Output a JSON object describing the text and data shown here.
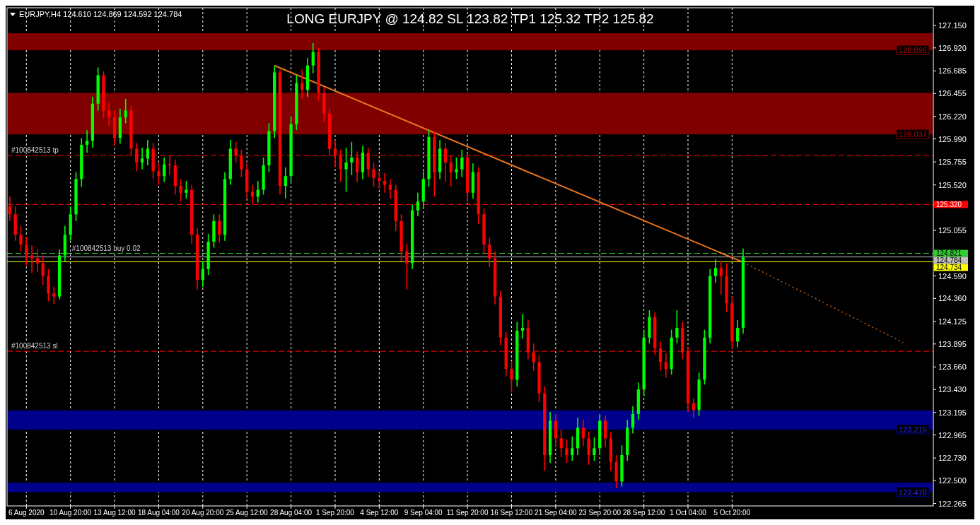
{
  "chart_data": {
    "type": "candlestick",
    "title": "LONG EURJPY @ 124.82 SL 123.82 TP1 125.32 TP2 125.82",
    "annotations": [
      "EURJPY,H4  124.610 124.869 124.592 124.784",
      {
        "text": "#100842513 tp",
        "y": 125.82
      },
      {
        "text": "#100842513 buy 0.02",
        "y": 124.821
      },
      {
        "text": "#100842513 sl",
        "y": 123.82
      }
    ],
    "categories": [
      null,
      null,
      null,
      "6 Aug 2020",
      null,
      null,
      null,
      null,
      null,
      null,
      null,
      "10 Aug 20:00",
      null,
      null,
      null,
      null,
      null,
      null,
      null,
      "13 Aug 12:00",
      null,
      null,
      null,
      null,
      null,
      null,
      null,
      "18 Aug 04:00",
      null,
      null,
      null,
      null,
      null,
      null,
      null,
      "20 Aug 20:00",
      null,
      null,
      null,
      null,
      null,
      null,
      null,
      "25 Aug 12:00",
      null,
      null,
      null,
      null,
      null,
      null,
      null,
      "28 Aug 04:00",
      null,
      null,
      null,
      null,
      null,
      null,
      null,
      "1 Sep 20:00",
      null,
      null,
      null,
      null,
      null,
      null,
      null,
      "4 Sep 12:00",
      null,
      null,
      null,
      null,
      null,
      null,
      null,
      "9 Sep 04:00",
      null,
      null,
      null,
      null,
      null,
      null,
      null,
      "11 Sep 20:00",
      null,
      null,
      null,
      null,
      null,
      null,
      null,
      "16 Sep 12:00",
      null,
      null,
      null,
      null,
      null,
      null,
      null,
      "21 Sep 04:00",
      null,
      null,
      null,
      null,
      null,
      null,
      null,
      "23 Sep 20:00",
      null,
      null,
      null,
      null,
      null,
      null,
      null,
      "28 Sep 12:00",
      null,
      null,
      null,
      null,
      null,
      null,
      null,
      "1 Oct 04:00",
      null,
      null,
      null,
      null,
      null,
      null,
      null,
      "5 Oct 20:00",
      null,
      null,
      null,
      null,
      null,
      null,
      null,
      null,
      null,
      null,
      null,
      null,
      null,
      null,
      null,
      null,
      null,
      null,
      null,
      null,
      null,
      null,
      null,
      null,
      null,
      null,
      null,
      null,
      null,
      null,
      null,
      null,
      null,
      null,
      null,
      null
    ],
    "ohlc": [
      [
        125.3,
        125.4,
        125.15,
        125.22
      ],
      [
        125.22,
        125.3,
        124.95,
        125.01
      ],
      [
        125.01,
        125.1,
        124.84,
        124.91
      ],
      [
        124.91,
        124.99,
        124.7,
        124.8
      ],
      [
        124.8,
        124.9,
        124.62,
        124.77
      ],
      [
        124.77,
        124.86,
        124.63,
        124.72
      ],
      [
        124.72,
        124.8,
        124.5,
        124.59
      ],
      [
        124.59,
        124.66,
        124.33,
        124.41
      ],
      [
        124.41,
        124.48,
        124.3,
        124.38
      ],
      [
        124.38,
        124.86,
        124.35,
        124.8
      ],
      [
        124.8,
        125.1,
        124.74,
        125.01
      ],
      [
        125.01,
        125.3,
        124.95,
        125.22
      ],
      [
        125.22,
        125.65,
        125.15,
        125.58
      ],
      [
        125.58,
        126.0,
        125.5,
        125.93
      ],
      [
        125.93,
        126.08,
        125.85,
        125.97
      ],
      [
        125.97,
        126.42,
        125.9,
        126.35
      ],
      [
        126.35,
        126.72,
        126.28,
        126.64
      ],
      [
        126.64,
        126.68,
        126.2,
        126.28
      ],
      [
        126.28,
        126.36,
        126.12,
        126.21
      ],
      [
        126.21,
        126.28,
        125.92,
        126.0
      ],
      [
        126.0,
        126.3,
        125.94,
        126.21
      ],
      [
        126.21,
        126.4,
        126.15,
        126.28
      ],
      [
        126.28,
        126.33,
        125.82,
        125.89
      ],
      [
        125.89,
        125.95,
        125.66,
        125.75
      ],
      [
        125.75,
        125.9,
        125.68,
        125.79
      ],
      [
        125.79,
        125.98,
        125.72,
        125.89
      ],
      [
        125.89,
        125.95,
        125.58,
        125.66
      ],
      [
        125.66,
        125.74,
        125.52,
        125.61
      ],
      [
        125.61,
        125.8,
        125.55,
        125.73
      ],
      [
        125.73,
        125.82,
        125.62,
        125.72
      ],
      [
        125.72,
        125.78,
        125.42,
        125.51
      ],
      [
        125.51,
        125.58,
        125.35,
        125.44
      ],
      [
        125.44,
        125.56,
        125.38,
        125.47
      ],
      [
        125.47,
        125.52,
        124.92,
        125.01
      ],
      [
        125.01,
        125.08,
        124.45,
        124.55
      ],
      [
        124.55,
        124.74,
        124.48,
        124.66
      ],
      [
        124.66,
        125.02,
        124.6,
        124.94
      ],
      [
        124.94,
        125.22,
        124.88,
        125.15
      ],
      [
        125.15,
        125.22,
        124.93,
        125.01
      ],
      [
        125.01,
        125.65,
        124.95,
        125.58
      ],
      [
        125.58,
        125.98,
        125.52,
        125.89
      ],
      [
        125.89,
        125.96,
        125.75,
        125.82
      ],
      [
        125.82,
        125.88,
        125.6,
        125.68
      ],
      [
        125.68,
        125.74,
        125.38,
        125.45
      ],
      [
        125.45,
        125.52,
        125.32,
        125.4
      ],
      [
        125.4,
        125.56,
        125.34,
        125.47
      ],
      [
        125.47,
        125.8,
        125.42,
        125.72
      ],
      [
        125.72,
        126.15,
        125.65,
        126.07
      ],
      [
        126.07,
        126.74,
        126.0,
        126.67
      ],
      [
        126.67,
        126.7,
        125.42,
        125.51
      ],
      [
        125.51,
        125.7,
        125.38,
        125.61
      ],
      [
        125.61,
        126.22,
        125.55,
        126.14
      ],
      [
        126.14,
        126.64,
        126.08,
        126.56
      ],
      [
        126.56,
        126.7,
        126.4,
        126.49
      ],
      [
        126.49,
        126.82,
        126.42,
        126.74
      ],
      [
        126.74,
        126.97,
        126.66,
        126.88
      ],
      [
        126.88,
        126.92,
        126.38,
        126.46
      ],
      [
        126.46,
        126.52,
        126.16,
        126.25
      ],
      [
        126.25,
        126.3,
        125.82,
        125.89
      ],
      [
        125.89,
        125.98,
        125.7,
        125.82
      ],
      [
        125.82,
        125.88,
        125.55,
        125.68
      ],
      [
        125.68,
        125.9,
        125.45,
        125.75
      ],
      [
        125.75,
        125.96,
        125.62,
        125.8
      ],
      [
        125.8,
        125.86,
        125.55,
        125.65
      ],
      [
        125.65,
        125.92,
        125.58,
        125.85
      ],
      [
        125.85,
        125.9,
        125.6,
        125.68
      ],
      [
        125.68,
        125.75,
        125.5,
        125.59
      ],
      [
        125.59,
        125.66,
        125.48,
        125.56
      ],
      [
        125.56,
        125.64,
        125.44,
        125.52
      ],
      [
        125.52,
        125.58,
        125.38,
        125.47
      ],
      [
        125.47,
        125.52,
        125.05,
        125.15
      ],
      [
        125.15,
        125.22,
        124.74,
        124.84
      ],
      [
        124.84,
        124.92,
        124.45,
        124.72
      ],
      [
        124.72,
        125.32,
        124.66,
        125.26
      ],
      [
        125.26,
        125.44,
        125.2,
        125.35
      ],
      [
        125.35,
        125.66,
        125.28,
        125.58
      ],
      [
        125.58,
        126.08,
        125.5,
        126.01
      ],
      [
        126.01,
        126.06,
        125.4,
        125.65
      ],
      [
        125.65,
        125.98,
        125.58,
        125.89
      ],
      [
        125.89,
        125.95,
        125.55,
        125.75
      ],
      [
        125.75,
        125.82,
        125.5,
        125.65
      ],
      [
        125.65,
        125.8,
        125.58,
        125.68
      ],
      [
        125.68,
        125.88,
        125.6,
        125.8
      ],
      [
        125.8,
        125.84,
        125.35,
        125.44
      ],
      [
        125.44,
        125.74,
        125.38,
        125.65
      ],
      [
        125.65,
        125.7,
        125.12,
        125.22
      ],
      [
        125.22,
        125.28,
        124.82,
        124.91
      ],
      [
        124.91,
        124.98,
        124.68,
        124.77
      ],
      [
        124.77,
        124.84,
        124.3,
        124.38
      ],
      [
        124.38,
        124.44,
        123.88,
        123.96
      ],
      [
        123.96,
        124.02,
        123.56,
        123.64
      ],
      [
        123.64,
        123.72,
        123.4,
        123.53
      ],
      [
        123.53,
        124.12,
        123.46,
        124.03
      ],
      [
        124.03,
        124.2,
        123.95,
        124.06
      ],
      [
        124.06,
        124.14,
        123.74,
        123.81
      ],
      [
        123.81,
        123.9,
        123.62,
        123.71
      ],
      [
        123.71,
        123.78,
        123.3,
        123.39
      ],
      [
        123.39,
        123.46,
        122.6,
        122.76
      ],
      [
        122.76,
        123.2,
        122.68,
        123.11
      ],
      [
        123.11,
        123.18,
        122.85,
        122.93
      ],
      [
        122.93,
        123.02,
        122.74,
        122.83
      ],
      [
        122.83,
        122.92,
        122.68,
        122.76
      ],
      [
        122.76,
        122.95,
        122.7,
        122.83
      ],
      [
        122.83,
        123.14,
        122.76,
        123.04
      ],
      [
        123.04,
        123.12,
        122.85,
        122.93
      ],
      [
        122.93,
        123.0,
        122.66,
        122.76
      ],
      [
        122.76,
        122.94,
        122.7,
        122.83
      ],
      [
        122.83,
        123.18,
        122.76,
        123.11
      ],
      [
        123.11,
        123.16,
        122.84,
        122.93
      ],
      [
        122.93,
        123.0,
        122.6,
        122.69
      ],
      [
        122.69,
        122.76,
        122.42,
        122.49
      ],
      [
        122.49,
        122.86,
        122.44,
        122.76
      ],
      [
        122.76,
        123.12,
        122.7,
        123.04
      ],
      [
        123.04,
        123.26,
        122.98,
        123.18
      ],
      [
        123.18,
        123.5,
        123.12,
        123.43
      ],
      [
        123.43,
        124.04,
        123.36,
        123.96
      ],
      [
        123.96,
        124.24,
        123.9,
        124.17
      ],
      [
        124.17,
        124.22,
        123.78,
        123.85
      ],
      [
        123.85,
        123.92,
        123.62,
        123.71
      ],
      [
        123.71,
        123.8,
        123.55,
        123.64
      ],
      [
        123.64,
        124.04,
        123.58,
        123.96
      ],
      [
        123.96,
        124.24,
        123.9,
        124.06
      ],
      [
        124.06,
        124.12,
        123.74,
        123.81
      ],
      [
        123.81,
        123.86,
        123.2,
        123.29
      ],
      [
        123.29,
        123.34,
        123.14,
        123.22
      ],
      [
        123.22,
        123.6,
        123.16,
        123.53
      ],
      [
        123.53,
        124.04,
        123.48,
        123.96
      ],
      [
        123.96,
        124.66,
        123.9,
        124.59
      ],
      [
        124.59,
        124.76,
        124.52,
        124.67
      ],
      [
        124.67,
        124.74,
        124.4,
        124.59
      ],
      [
        124.59,
        124.72,
        124.22,
        124.31
      ],
      [
        124.31,
        124.38,
        123.85,
        123.92
      ],
      [
        123.92,
        124.14,
        123.86,
        124.06
      ],
      [
        124.06,
        124.87,
        124.0,
        124.78
      ],
      null,
      null,
      null,
      null,
      null,
      null,
      null,
      null,
      null,
      null,
      null,
      null,
      null,
      null,
      null,
      null,
      null,
      null,
      null,
      null,
      null,
      null,
      null,
      null,
      null,
      null,
      null,
      null,
      null,
      null,
      null,
      null,
      null,
      null
    ],
    "colors": [
      "#ff0000",
      "#ff0000",
      "#ff0000",
      "#ff0000",
      "#ff0000",
      "#ff0000",
      "#ff0000",
      "#ff0000",
      "#ff0000",
      "#00ff00",
      "#00ff00",
      "#00ff00",
      "#00ff00",
      "#00ff00",
      "#00ff00",
      "#00ff00",
      "#00ff00",
      "#ff0000",
      "#ff0000",
      "#ff0000",
      "#00ff00",
      "#00ff00",
      "#ff0000",
      "#ff0000",
      "#00ff00",
      "#00ff00",
      "#ff0000",
      "#ff0000",
      "#00ff00",
      "#ff0000",
      "#ff0000",
      "#ff0000",
      "#00ff00",
      "#ff0000",
      "#ff0000",
      "#00ff00",
      "#00ff00",
      "#00ff00",
      "#ff0000",
      "#00ff00",
      "#00ff00",
      "#ff0000",
      "#ff0000",
      "#ff0000",
      "#ff0000",
      "#00ff00",
      "#00ff00",
      "#00ff00",
      "#00ff00",
      "#ff0000",
      "#00ff00",
      "#00ff00",
      "#00ff00",
      "#ff0000",
      "#00ff00",
      "#00ff00",
      "#ff0000",
      "#ff0000",
      "#ff0000",
      "#ff0000",
      "#ff0000",
      "#00ff00",
      "#00ff00",
      "#ff0000",
      "#00ff00",
      "#ff0000",
      "#ff0000",
      "#ff0000",
      "#ff0000",
      "#ff0000",
      "#ff0000",
      "#ff0000",
      "#ff0000",
      "#00ff00",
      "#00ff00",
      "#00ff00",
      "#00ff00",
      "#ff0000",
      "#00ff00",
      "#ff0000",
      "#ff0000",
      "#00ff00",
      "#00ff00",
      "#ff0000",
      "#00ff00",
      "#ff0000",
      "#ff0000",
      "#ff0000",
      "#ff0000",
      "#ff0000",
      "#ff0000",
      "#ff0000",
      "#00ff00",
      "#00ff00",
      "#ff0000",
      "#ff0000",
      "#ff0000",
      "#ff0000",
      "#00ff00",
      "#ff0000",
      "#ff0000",
      "#ff0000",
      "#00ff00",
      "#00ff00",
      "#ff0000",
      "#ff0000",
      "#00ff00",
      "#00ff00",
      "#ff0000",
      "#ff0000",
      "#ff0000",
      "#00ff00",
      "#00ff00",
      "#00ff00",
      "#00ff00",
      "#00ff00",
      "#00ff00",
      "#ff0000",
      "#ff0000",
      "#ff0000",
      "#00ff00",
      "#00ff00",
      "#ff0000",
      "#ff0000",
      "#ff0000",
      "#00ff00",
      "#00ff00",
      "#00ff00",
      "#00ff00",
      "#ff0000",
      "#ff0000",
      "#ff0000",
      "#00ff00",
      "#00ff00",
      null,
      null,
      null,
      null,
      null,
      null,
      null,
      null,
      null,
      null,
      null,
      null,
      null,
      null,
      null,
      null,
      null,
      null,
      null,
      null,
      null,
      null,
      null,
      null,
      null,
      null,
      null,
      null,
      null,
      null,
      null,
      null,
      null,
      null
    ],
    "series": [
      {
        "type": "line",
        "color": "#e8741c",
        "line_style": "solid",
        "values": [
          null,
          null,
          null,
          null,
          null,
          null,
          null,
          null,
          null,
          null,
          null,
          null,
          null,
          null,
          null,
          null,
          null,
          null,
          null,
          null,
          null,
          null,
          null,
          null,
          null,
          null,
          null,
          null,
          null,
          null,
          null,
          null,
          null,
          null,
          null,
          null,
          null,
          null,
          null,
          null,
          null,
          null,
          null,
          null,
          null,
          null,
          null,
          null,
          126.74,
          null,
          null,
          null,
          null,
          null,
          null,
          null,
          null,
          null,
          null,
          null,
          null,
          null,
          null,
          null,
          null,
          null,
          null,
          null,
          null,
          null,
          null,
          null,
          null,
          null,
          null,
          null,
          null,
          null,
          null,
          null,
          null,
          null,
          null,
          null,
          null,
          null,
          null,
          null,
          null,
          null,
          null,
          null,
          null,
          null,
          null,
          null,
          null,
          null,
          null,
          null,
          null,
          null,
          null,
          null,
          null,
          null,
          null,
          null,
          null,
          null,
          null,
          null,
          null,
          null,
          null,
          null,
          null,
          null,
          null,
          null,
          null,
          null,
          null,
          null,
          null,
          null,
          null,
          null,
          null,
          null,
          null,
          null,
          null,
          124.73,
          null,
          null,
          null,
          null,
          null,
          null,
          null,
          null,
          null,
          null,
          null,
          null,
          null,
          null,
          null,
          null,
          null,
          null,
          null,
          null,
          null,
          null,
          null,
          null,
          null,
          null,
          null,
          null,
          null,
          null,
          null,
          null,
          null,
          null
        ]
      },
      {
        "type": "line",
        "color": "#e8741c",
        "line_style": "dotted",
        "values": [
          null,
          null,
          null,
          null,
          null,
          null,
          null,
          null,
          null,
          null,
          null,
          null,
          null,
          null,
          null,
          null,
          null,
          null,
          null,
          null,
          null,
          null,
          null,
          null,
          null,
          null,
          null,
          null,
          null,
          null,
          null,
          null,
          null,
          null,
          null,
          null,
          null,
          null,
          null,
          null,
          null,
          null,
          null,
          null,
          null,
          null,
          null,
          null,
          null,
          null,
          null,
          null,
          null,
          null,
          null,
          null,
          null,
          null,
          null,
          null,
          null,
          null,
          null,
          null,
          null,
          null,
          null,
          null,
          null,
          null,
          null,
          null,
          null,
          null,
          null,
          null,
          null,
          null,
          null,
          null,
          null,
          null,
          null,
          null,
          null,
          null,
          null,
          null,
          null,
          null,
          null,
          null,
          null,
          null,
          null,
          null,
          null,
          null,
          null,
          null,
          null,
          null,
          null,
          null,
          null,
          null,
          null,
          null,
          null,
          null,
          null,
          null,
          null,
          null,
          null,
          null,
          null,
          null,
          null,
          null,
          null,
          null,
          null,
          null,
          null,
          null,
          null,
          null,
          null,
          null,
          null,
          null,
          null,
          124.73,
          null,
          null,
          null,
          null,
          null,
          null,
          null,
          null,
          null,
          null,
          null,
          null,
          null,
          null,
          null,
          null,
          null,
          null,
          null,
          null,
          null,
          null,
          null,
          null,
          null,
          null,
          null,
          null,
          123.91,
          null,
          null,
          null,
          null,
          null
        ]
      }
    ],
    "ylim": [
      122.24,
      127.33
    ],
    "yticks": [
      {
        "value": 127.15,
        "label": "127.150"
      },
      {
        "value": 126.92,
        "label": "126.920"
      },
      126.685,
      126.455,
      {
        "value": 126.22,
        "label": "126.220"
      },
      {
        "value": 125.99,
        "label": "125.990"
      },
      125.755,
      {
        "value": 125.52,
        "label": "125.520"
      },
      125.055,
      {
        "value": 124.59,
        "label": "124.590"
      },
      {
        "value": 124.36,
        "label": "124.360"
      },
      124.125,
      123.895,
      {
        "value": 123.66,
        "label": "123.660"
      },
      {
        "value": 123.43,
        "label": "123.430"
      },
      123.195,
      122.965,
      {
        "value": 122.73,
        "label": "122.730"
      },
      {
        "value": 122.5,
        "label": "122.500"
      },
      122.265
    ],
    "grid": "x",
    "bands": [
      {
        "axis": "y",
        "from": 126.896,
        "to": 127.07,
        "label": "126.896",
        "color": "#800000"
      },
      {
        "axis": "y",
        "from": 126.037,
        "to": 126.46,
        "label": "126.037",
        "color": "#800000"
      },
      {
        "axis": "y",
        "from": 123.02,
        "to": 123.216,
        "label": "123.216",
        "color": "#00008b"
      },
      {
        "axis": "y",
        "from": 122.38,
        "to": 122.478,
        "label": "122.478",
        "color": "#00008b"
      }
    ],
    "ref_lines": [
      {
        "axis": "y",
        "value": 125.82,
        "color": "#ff0000",
        "line_style": "dashed"
      },
      {
        "axis": "y",
        "value": 125.32,
        "label": "125.320",
        "color": "#ff0000",
        "line_style": "dashed"
      },
      {
        "axis": "y",
        "value": 124.821,
        "label": "124.821",
        "color": "#32cd32",
        "line_style": "dashed"
      },
      {
        "axis": "y",
        "value": 124.784,
        "label": "124.784",
        "color": "#c0c0c0",
        "line_style": "solid"
      },
      {
        "axis": "y",
        "value": 124.734,
        "label": "124.734",
        "color": "#ffff00",
        "line_style": "solid"
      },
      {
        "axis": "y",
        "value": 123.82,
        "color": "#ff0000",
        "line_style": "dashed"
      }
    ]
  }
}
